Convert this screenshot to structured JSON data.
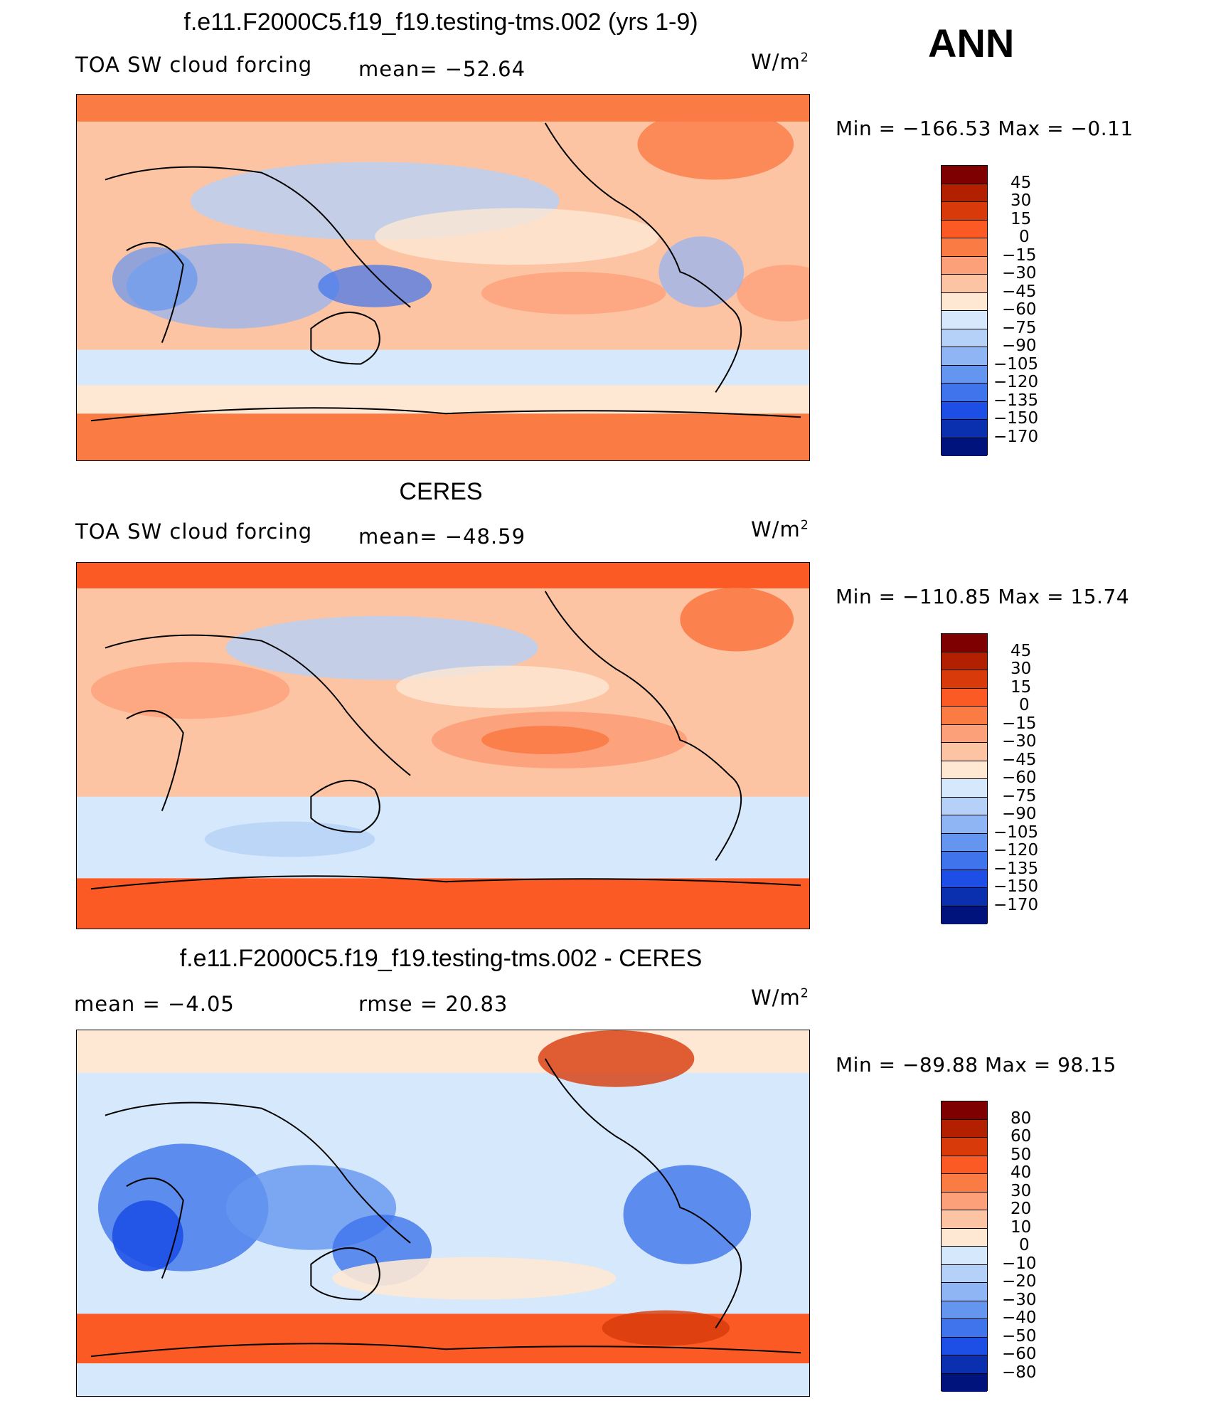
{
  "page": {
    "season": "ANN"
  },
  "panels": [
    {
      "title": "f.e11.F2000C5.f19_f19.testing-tms.002 (yrs 1-9)",
      "left_label": "TOA SW cloud forcing",
      "mid_label": "mean= −52.64",
      "units": "W/m",
      "units_sup": "2",
      "minmax": "Min = −166.53 Max =  −0.11",
      "colors": [
        "#7f0000",
        "#b22000",
        "#d83a0a",
        "#fb5a24",
        "#fb7b45",
        "#fca07a",
        "#fdc4a3",
        "#fee8d4",
        "#d6e8fb",
        "#b5d1f8",
        "#8fb5f5",
        "#6496f0",
        "#3f74ec",
        "#1d4fe6",
        "#0a30b0",
        "#00137c"
      ],
      "labels": [
        "45",
        "30",
        "15",
        "0",
        "−15",
        "−30",
        "−45",
        "−60",
        "−75",
        "−90",
        "−105",
        "−120",
        "−135",
        "−150",
        "−170"
      ],
      "label_indent": [
        1,
        1,
        1,
        2,
        0,
        0,
        0,
        0,
        0,
        0,
        -1,
        -1,
        -1,
        -1,
        -1
      ]
    },
    {
      "title": "CERES",
      "left_label": "TOA SW cloud forcing",
      "mid_label": "mean= −48.59",
      "units": "W/m",
      "units_sup": "2",
      "minmax": "Min = −110.85 Max =  15.74",
      "colors": [
        "#7f0000",
        "#b22000",
        "#d83a0a",
        "#fb5a24",
        "#fb7b45",
        "#fca07a",
        "#fdc4a3",
        "#fee8d4",
        "#d6e8fb",
        "#b5d1f8",
        "#8fb5f5",
        "#6496f0",
        "#3f74ec",
        "#1d4fe6",
        "#0a30b0",
        "#00137c"
      ],
      "labels": [
        "45",
        "30",
        "15",
        "0",
        "−15",
        "−30",
        "−45",
        "−60",
        "−75",
        "−90",
        "−105",
        "−120",
        "−135",
        "−150",
        "−170"
      ],
      "label_indent": [
        1,
        1,
        1,
        2,
        0,
        0,
        0,
        0,
        0,
        0,
        -1,
        -1,
        -1,
        -1,
        -1
      ]
    },
    {
      "title": "f.e11.F2000C5.f19_f19.testing-tms.002 - CERES",
      "left_label": "mean =   −4.05",
      "mid_label": "rmse =   20.83",
      "units": "W/m",
      "units_sup": "2",
      "minmax": "Min = −89.88 Max =  98.15",
      "colors": [
        "#7f0000",
        "#b22000",
        "#d83a0a",
        "#fb5a24",
        "#fb7b45",
        "#fca07a",
        "#fdc4a3",
        "#fee8d4",
        "#d6e8fb",
        "#b5d1f8",
        "#8fb5f5",
        "#6496f0",
        "#3f74ec",
        "#1d4fe6",
        "#0a30b0",
        "#00137c"
      ],
      "labels": [
        "80",
        "60",
        "50",
        "40",
        "30",
        "20",
        "10",
        "0",
        "−10",
        "−20",
        "−30",
        "−40",
        "−50",
        "−60",
        "−80"
      ],
      "label_indent": [
        1,
        1,
        1,
        1,
        1,
        1,
        1,
        2,
        0,
        0,
        0,
        0,
        0,
        0,
        0
      ]
    }
  ]
}
